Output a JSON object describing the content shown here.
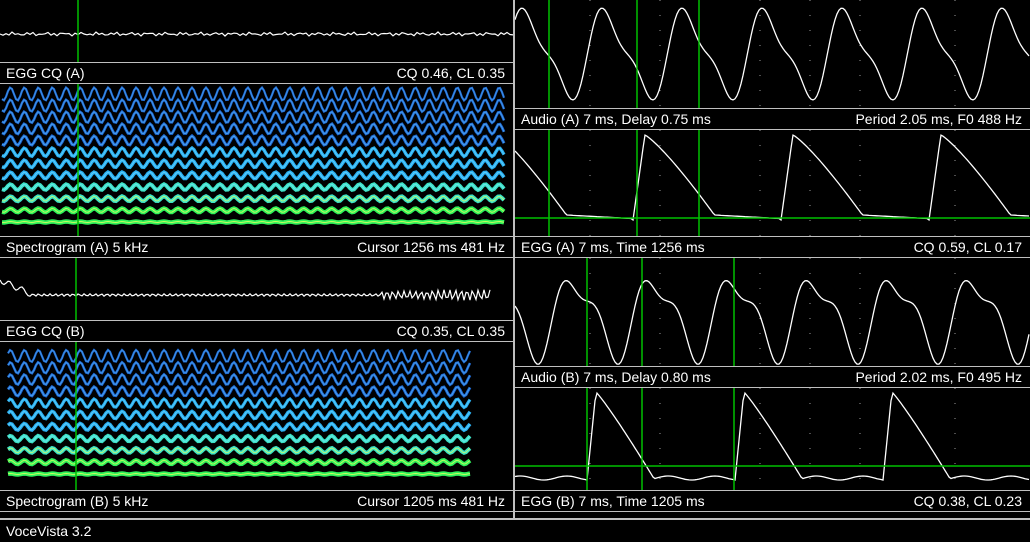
{
  "app": {
    "status": "VoceVista 3.2"
  },
  "left": {
    "egg_a_bar": {
      "label": "EGG CQ (A)",
      "value": "CQ 0.46, CL 0.35"
    },
    "spec_a_bar": {
      "label": "Spectrogram (A)   5 kHz",
      "value": "Cursor  1256 ms  481  Hz"
    },
    "egg_b_bar": {
      "label": "EGG CQ (B)",
      "value": "CQ 0.35, CL 0.35"
    },
    "spec_b_bar": {
      "label": "Spectrogram (B)   5 kHz",
      "value": "Cursor  1205 ms  481  Hz"
    }
  },
  "right": {
    "audio_a_bar": {
      "label": "Audio (A) 7  ms, Delay 0.75 ms",
      "value": "Period 2.05 ms, F0 488 Hz"
    },
    "egg_a_bar": {
      "label": "EGG (A) 7  ms, Time 1256 ms",
      "value": "CQ 0.59, CL 0.17"
    },
    "audio_b_bar": {
      "label": "Audio (B) 7  ms, Delay 0.80 ms",
      "value": "Period 2.02 ms, F0 495 Hz"
    },
    "egg_b_bar": {
      "label": "EGG (B) 7  ms, Time 1205 ms",
      "value": "CQ 0.38, CL 0.23"
    }
  },
  "colors": {
    "trace": "#ffffff",
    "cursor": "#00c000",
    "separator": "#bfbfbf",
    "background": "#000000"
  }
}
